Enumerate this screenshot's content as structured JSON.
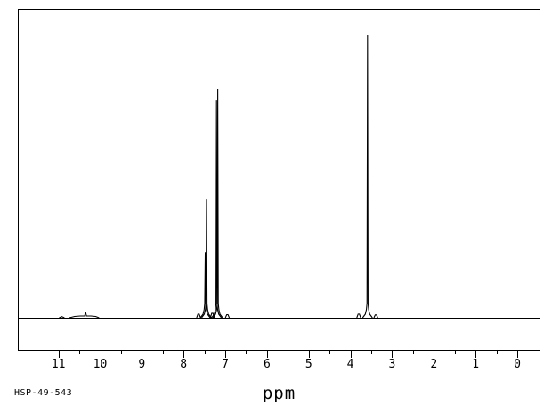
{
  "meta": {
    "background_color": "#ffffff",
    "line_color": "#000000",
    "text_color": "#000000"
  },
  "footer": {
    "sample_id": "HSP-49-543"
  },
  "chart_data": {
    "type": "line",
    "title": "",
    "xlabel": "ppm",
    "ylabel": "",
    "x_axis_reversed": true,
    "xlim": [
      11.97,
      -0.56
    ],
    "ylim_relative": [
      0,
      1.12
    ],
    "grid": false,
    "legend": false,
    "x_ticks_major": [
      11,
      10,
      9,
      8,
      7,
      6,
      5,
      4,
      3,
      2,
      1,
      0
    ],
    "x_ticks_minor": [
      10.5,
      9.5,
      8.5,
      7.5,
      6.5,
      5.5,
      4.5,
      3.5,
      2.5,
      1.5,
      0.5
    ],
    "annotation": "HSP-49-543",
    "peaks": [
      {
        "ppm": 10.92,
        "rel_height": 0.004,
        "shape": "noise"
      },
      {
        "ppm": 10.35,
        "rel_height": 0.021,
        "shape": "broad",
        "width_ppm": 0.65
      },
      {
        "ppm": 7.64,
        "rel_height": 0.013,
        "shape": "satellite"
      },
      {
        "ppm": 7.48,
        "rel_height": 0.232,
        "shape": "sharp"
      },
      {
        "ppm": 7.45,
        "rel_height": 0.418,
        "shape": "sharp"
      },
      {
        "ppm": 7.31,
        "rel_height": 0.016,
        "shape": "satellite"
      },
      {
        "ppm": 7.21,
        "rel_height": 0.77,
        "shape": "sharp"
      },
      {
        "ppm": 7.18,
        "rel_height": 0.808,
        "shape": "sharp"
      },
      {
        "ppm": 6.95,
        "rel_height": 0.011,
        "shape": "satellite"
      },
      {
        "ppm": 3.8,
        "rel_height": 0.013,
        "shape": "satellite"
      },
      {
        "ppm": 3.59,
        "rel_height": 1.0,
        "shape": "sharp"
      },
      {
        "ppm": 3.39,
        "rel_height": 0.01,
        "shape": "satellite"
      }
    ]
  }
}
